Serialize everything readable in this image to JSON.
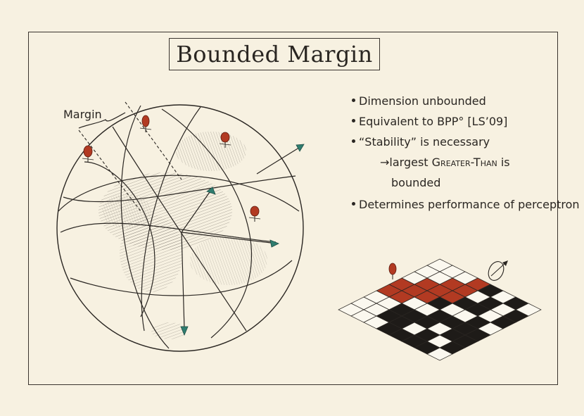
{
  "title": "Bounded Margin",
  "margin_label": "Margin",
  "bullets": {
    "b1": "Dimension unbounded",
    "b2": "Equivalent to BPP° [LS’09]",
    "b3": "“Stability” is necessary",
    "b3_sub_arrow": "→",
    "b3_sub_1a": "largest ",
    "b3_sub_1b": "Greater-Than",
    "b3_sub_1c": " is",
    "b3_sub_2": "bounded",
    "b4": "Determines performance of perceptron"
  },
  "colors": {
    "paper": "#f7f1e1",
    "ink": "#2a2622",
    "red": "#b23a22",
    "teal": "#2f7d6f"
  }
}
